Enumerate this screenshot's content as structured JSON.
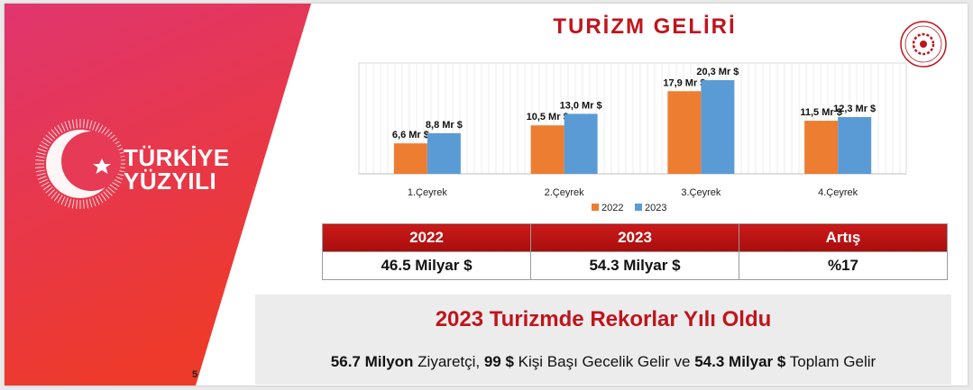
{
  "slide": {
    "title": "TURİZM GELİRİ",
    "page_number": "5"
  },
  "brand": {
    "line1": "TÜRKİYE",
    "line2": "YÜZYILI"
  },
  "colors": {
    "accent_red": "#c0141c",
    "series_2022": "#ed7d31",
    "series_2023": "#5b9bd5",
    "panel_gradient_start": "#e0356f",
    "panel_gradient_end": "#ee3a2a"
  },
  "chart_data": {
    "type": "bar",
    "categories": [
      "1.Çeyrek",
      "2.Çeyrek",
      "3.Çeyrek",
      "4.Çeyrek"
    ],
    "series": [
      {
        "name": "2022",
        "values": [
          6.6,
          10.5,
          17.9,
          11.5
        ],
        "labels": [
          "6,6 Mr $",
          "10,5 Mr $",
          "17,9 Mr $",
          "11,5 Mr $"
        ]
      },
      {
        "name": "2023",
        "values": [
          8.8,
          13.0,
          20.3,
          12.3
        ],
        "labels": [
          "8,8 Mr $",
          "13,0 Mr $",
          "20,3 Mr $",
          "12,3 Mr $"
        ]
      }
    ],
    "legend": "bottom",
    "grid": true,
    "ylim": [
      0,
      24
    ]
  },
  "table": {
    "headers": [
      "2022",
      "2023",
      "Artış"
    ],
    "values": [
      "46.5 Milyar $",
      "54.3 Milyar $",
      "%17"
    ]
  },
  "summary": {
    "headline": "2023 Turizmde Rekorlar Yılı Oldu",
    "visitors_bold": "56.7 Milyon",
    "visitors_text": " Ziyaretçi, ",
    "per_night_bold": "99 $",
    "per_night_text": " Kişi Başı Gecelik Gelir ve ",
    "total_bold": "54.3 Milyar $",
    "total_text": " Toplam Gelir"
  }
}
